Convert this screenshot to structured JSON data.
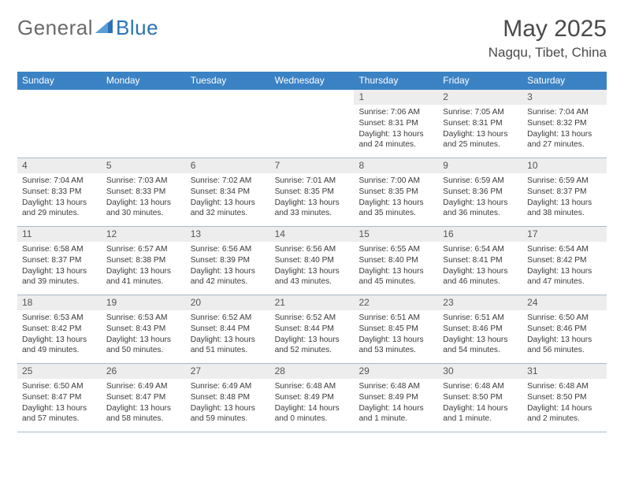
{
  "brand": {
    "text1": "General",
    "text2": "Blue"
  },
  "title": "May 2025",
  "location": "Nagqu, Tibet, China",
  "colors": {
    "header_bg": "#3b82c4",
    "header_text": "#ffffff",
    "daynum_bg": "#ededed",
    "text": "#333333",
    "rule": "#a9b9c6",
    "brand_gray": "#6a6a6a",
    "brand_blue": "#2b73b6"
  },
  "dow": [
    "Sunday",
    "Monday",
    "Tuesday",
    "Wednesday",
    "Thursday",
    "Friday",
    "Saturday"
  ],
  "weeks": [
    [
      {
        "n": "",
        "lines": []
      },
      {
        "n": "",
        "lines": []
      },
      {
        "n": "",
        "lines": []
      },
      {
        "n": "",
        "lines": []
      },
      {
        "n": "1",
        "lines": [
          "Sunrise: 7:06 AM",
          "Sunset: 8:31 PM",
          "Daylight: 13 hours",
          "and 24 minutes."
        ]
      },
      {
        "n": "2",
        "lines": [
          "Sunrise: 7:05 AM",
          "Sunset: 8:31 PM",
          "Daylight: 13 hours",
          "and 25 minutes."
        ]
      },
      {
        "n": "3",
        "lines": [
          "Sunrise: 7:04 AM",
          "Sunset: 8:32 PM",
          "Daylight: 13 hours",
          "and 27 minutes."
        ]
      }
    ],
    [
      {
        "n": "4",
        "lines": [
          "Sunrise: 7:04 AM",
          "Sunset: 8:33 PM",
          "Daylight: 13 hours",
          "and 29 minutes."
        ]
      },
      {
        "n": "5",
        "lines": [
          "Sunrise: 7:03 AM",
          "Sunset: 8:33 PM",
          "Daylight: 13 hours",
          "and 30 minutes."
        ]
      },
      {
        "n": "6",
        "lines": [
          "Sunrise: 7:02 AM",
          "Sunset: 8:34 PM",
          "Daylight: 13 hours",
          "and 32 minutes."
        ]
      },
      {
        "n": "7",
        "lines": [
          "Sunrise: 7:01 AM",
          "Sunset: 8:35 PM",
          "Daylight: 13 hours",
          "and 33 minutes."
        ]
      },
      {
        "n": "8",
        "lines": [
          "Sunrise: 7:00 AM",
          "Sunset: 8:35 PM",
          "Daylight: 13 hours",
          "and 35 minutes."
        ]
      },
      {
        "n": "9",
        "lines": [
          "Sunrise: 6:59 AM",
          "Sunset: 8:36 PM",
          "Daylight: 13 hours",
          "and 36 minutes."
        ]
      },
      {
        "n": "10",
        "lines": [
          "Sunrise: 6:59 AM",
          "Sunset: 8:37 PM",
          "Daylight: 13 hours",
          "and 38 minutes."
        ]
      }
    ],
    [
      {
        "n": "11",
        "lines": [
          "Sunrise: 6:58 AM",
          "Sunset: 8:37 PM",
          "Daylight: 13 hours",
          "and 39 minutes."
        ]
      },
      {
        "n": "12",
        "lines": [
          "Sunrise: 6:57 AM",
          "Sunset: 8:38 PM",
          "Daylight: 13 hours",
          "and 41 minutes."
        ]
      },
      {
        "n": "13",
        "lines": [
          "Sunrise: 6:56 AM",
          "Sunset: 8:39 PM",
          "Daylight: 13 hours",
          "and 42 minutes."
        ]
      },
      {
        "n": "14",
        "lines": [
          "Sunrise: 6:56 AM",
          "Sunset: 8:40 PM",
          "Daylight: 13 hours",
          "and 43 minutes."
        ]
      },
      {
        "n": "15",
        "lines": [
          "Sunrise: 6:55 AM",
          "Sunset: 8:40 PM",
          "Daylight: 13 hours",
          "and 45 minutes."
        ]
      },
      {
        "n": "16",
        "lines": [
          "Sunrise: 6:54 AM",
          "Sunset: 8:41 PM",
          "Daylight: 13 hours",
          "and 46 minutes."
        ]
      },
      {
        "n": "17",
        "lines": [
          "Sunrise: 6:54 AM",
          "Sunset: 8:42 PM",
          "Daylight: 13 hours",
          "and 47 minutes."
        ]
      }
    ],
    [
      {
        "n": "18",
        "lines": [
          "Sunrise: 6:53 AM",
          "Sunset: 8:42 PM",
          "Daylight: 13 hours",
          "and 49 minutes."
        ]
      },
      {
        "n": "19",
        "lines": [
          "Sunrise: 6:53 AM",
          "Sunset: 8:43 PM",
          "Daylight: 13 hours",
          "and 50 minutes."
        ]
      },
      {
        "n": "20",
        "lines": [
          "Sunrise: 6:52 AM",
          "Sunset: 8:44 PM",
          "Daylight: 13 hours",
          "and 51 minutes."
        ]
      },
      {
        "n": "21",
        "lines": [
          "Sunrise: 6:52 AM",
          "Sunset: 8:44 PM",
          "Daylight: 13 hours",
          "and 52 minutes."
        ]
      },
      {
        "n": "22",
        "lines": [
          "Sunrise: 6:51 AM",
          "Sunset: 8:45 PM",
          "Daylight: 13 hours",
          "and 53 minutes."
        ]
      },
      {
        "n": "23",
        "lines": [
          "Sunrise: 6:51 AM",
          "Sunset: 8:46 PM",
          "Daylight: 13 hours",
          "and 54 minutes."
        ]
      },
      {
        "n": "24",
        "lines": [
          "Sunrise: 6:50 AM",
          "Sunset: 8:46 PM",
          "Daylight: 13 hours",
          "and 56 minutes."
        ]
      }
    ],
    [
      {
        "n": "25",
        "lines": [
          "Sunrise: 6:50 AM",
          "Sunset: 8:47 PM",
          "Daylight: 13 hours",
          "and 57 minutes."
        ]
      },
      {
        "n": "26",
        "lines": [
          "Sunrise: 6:49 AM",
          "Sunset: 8:47 PM",
          "Daylight: 13 hours",
          "and 58 minutes."
        ]
      },
      {
        "n": "27",
        "lines": [
          "Sunrise: 6:49 AM",
          "Sunset: 8:48 PM",
          "Daylight: 13 hours",
          "and 59 minutes."
        ]
      },
      {
        "n": "28",
        "lines": [
          "Sunrise: 6:48 AM",
          "Sunset: 8:49 PM",
          "Daylight: 14 hours",
          "and 0 minutes."
        ]
      },
      {
        "n": "29",
        "lines": [
          "Sunrise: 6:48 AM",
          "Sunset: 8:49 PM",
          "Daylight: 14 hours",
          "and 1 minute."
        ]
      },
      {
        "n": "30",
        "lines": [
          "Sunrise: 6:48 AM",
          "Sunset: 8:50 PM",
          "Daylight: 14 hours",
          "and 1 minute."
        ]
      },
      {
        "n": "31",
        "lines": [
          "Sunrise: 6:48 AM",
          "Sunset: 8:50 PM",
          "Daylight: 14 hours",
          "and 2 minutes."
        ]
      }
    ]
  ]
}
